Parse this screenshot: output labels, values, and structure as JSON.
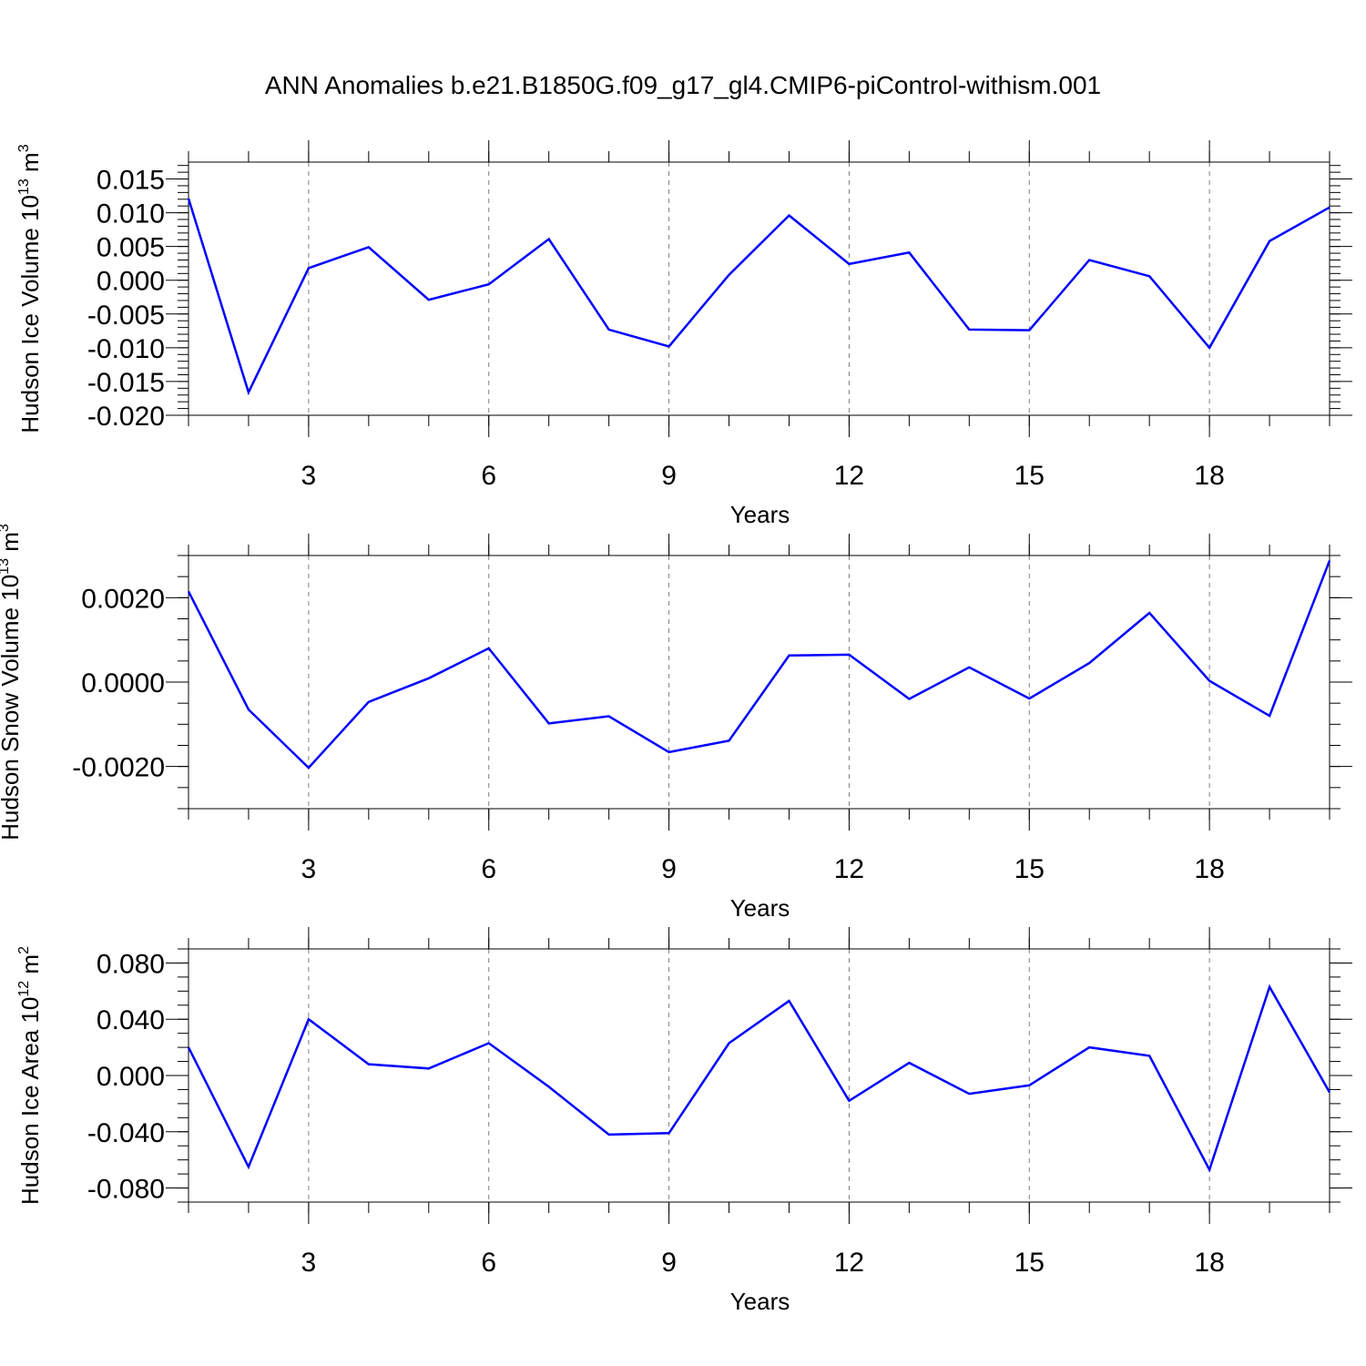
{
  "title": "ANN Anomalies b.e21.B1850G.f09_g17_gl4.CMIP6-piControl-withism.001",
  "colors": {
    "line": "#0000ff",
    "axis": "#000000",
    "grid": "#7f7f7f",
    "background": "#ffffff"
  },
  "chart_data": [
    {
      "type": "line",
      "ylabel": "Hudson Ice Volume",
      "ylabel_unit_base": "10",
      "ylabel_unit_exp": "13",
      "ylabel_unit_tail": "m",
      "ylabel_unit_tail_exp": "3",
      "xlabel": "Years",
      "grid": "vertical dashed at major x ticks",
      "xlim": [
        1,
        20
      ],
      "ylim": [
        -0.02,
        0.0175
      ],
      "x_ticks": [
        3,
        6,
        9,
        12,
        15,
        18
      ],
      "x_tick_labels": [
        "3",
        "6",
        "9",
        "12",
        "15",
        "18"
      ],
      "y_ticks": [
        -0.02,
        -0.015,
        -0.01,
        -0.005,
        0,
        0.005,
        0.01,
        0.015
      ],
      "y_tick_labels": [
        "-0.020",
        "-0.015",
        "-0.010",
        "-0.005",
        "0.000",
        "0.005",
        "0.010",
        "0.015"
      ],
      "x": [
        1,
        2,
        3,
        4,
        5,
        6,
        7,
        8,
        9,
        10,
        11,
        12,
        13,
        14,
        15,
        16,
        17,
        18,
        19,
        20
      ],
      "values": [
        0.0121,
        -0.0166,
        0.0018,
        0.0049,
        -0.0029,
        -0.0006,
        0.0061,
        -0.0073,
        -0.0098,
        0.0008,
        0.0096,
        0.0024,
        0.0041,
        -0.0073,
        -0.0074,
        0.003,
        0.0006,
        -0.01,
        0.0058,
        0.0108
      ]
    },
    {
      "type": "line",
      "ylabel": "Hudson Snow Volume",
      "ylabel_unit_base": "10",
      "ylabel_unit_exp": "13",
      "ylabel_unit_tail": "m",
      "ylabel_unit_tail_exp": "3",
      "xlabel": "Years",
      "grid": "vertical dashed at major x ticks",
      "xlim": [
        1,
        20
      ],
      "ylim": [
        -0.003,
        0.003
      ],
      "x_ticks": [
        3,
        6,
        9,
        12,
        15,
        18
      ],
      "x_tick_labels": [
        "3",
        "6",
        "9",
        "12",
        "15",
        "18"
      ],
      "y_ticks": [
        -0.002,
        0,
        0.002
      ],
      "y_tick_labels": [
        "-0.0020",
        "0.0000",
        "0.0020"
      ],
      "x": [
        1,
        2,
        3,
        4,
        5,
        6,
        7,
        8,
        9,
        10,
        11,
        12,
        13,
        14,
        15,
        16,
        17,
        18,
        19,
        20
      ],
      "values": [
        0.00215,
        -0.00065,
        -0.00203,
        -0.00047,
        9e-05,
        0.0008,
        -0.00098,
        -0.00081,
        -0.00166,
        -0.00139,
        0.00063,
        0.00065,
        -0.0004,
        0.00035,
        -0.00039,
        0.00045,
        0.00164,
        3e-05,
        -0.0008,
        0.00288
      ]
    },
    {
      "type": "line",
      "ylabel": "Hudson Ice Area",
      "ylabel_unit_base": "10",
      "ylabel_unit_exp": "12",
      "ylabel_unit_tail": "m",
      "ylabel_unit_tail_exp": "2",
      "xlabel": "Years",
      "grid": "vertical dashed at major x ticks",
      "xlim": [
        1,
        20
      ],
      "ylim": [
        -0.09,
        0.09
      ],
      "x_ticks": [
        3,
        6,
        9,
        12,
        15,
        18
      ],
      "x_tick_labels": [
        "3",
        "6",
        "9",
        "12",
        "15",
        "18"
      ],
      "y_ticks": [
        -0.08,
        -0.04,
        0,
        0.04,
        0.08
      ],
      "y_tick_labels": [
        "-0.080",
        "-0.040",
        "0.000",
        "0.040",
        "0.080"
      ],
      "x": [
        1,
        2,
        3,
        4,
        5,
        6,
        7,
        8,
        9,
        10,
        11,
        12,
        13,
        14,
        15,
        16,
        17,
        18,
        19,
        20
      ],
      "values": [
        0.02,
        -0.065,
        0.04,
        0.008,
        0.005,
        0.023,
        -0.008,
        -0.042,
        -0.041,
        0.023,
        0.053,
        -0.018,
        0.009,
        -0.013,
        -0.007,
        0.02,
        0.014,
        -0.067,
        0.063,
        -0.012
      ]
    }
  ]
}
